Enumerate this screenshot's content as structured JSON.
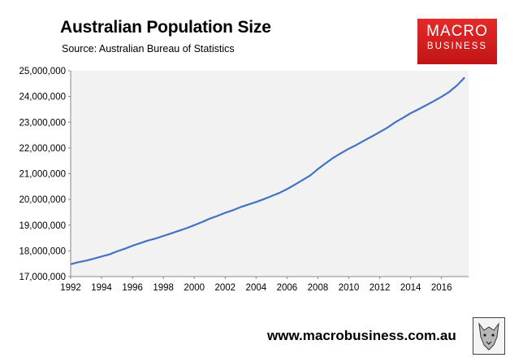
{
  "header": {
    "title": "Australian Population Size",
    "subtitle": "Source: Australian Bureau of Statistics"
  },
  "logo": {
    "line1": "MACRO",
    "line2": "BUSINESS",
    "color": "#d61f1f"
  },
  "footer": {
    "url": "www.macrobusiness.com.au",
    "icon": "wolf-icon"
  },
  "chart_data": {
    "type": "line",
    "title": "Australian Population Size",
    "subtitle": "Source: Australian Bureau of Statistics",
    "xlabel": "",
    "ylabel": "",
    "xlim": [
      1992,
      2017.75
    ],
    "ylim": [
      17000000,
      25000000
    ],
    "y_ticks": [
      "17,000,000",
      "18,000,000",
      "19,000,000",
      "20,000,000",
      "21,000,000",
      "22,000,000",
      "23,000,000",
      "24,000,000",
      "25,000,000"
    ],
    "x_ticks": [
      "1992",
      "1994",
      "1996",
      "1998",
      "2000",
      "2002",
      "2004",
      "2006",
      "2008",
      "2010",
      "2012",
      "2014",
      "2016"
    ],
    "grid": false,
    "line_color": "#4472c4",
    "plot_background": "#f2f2f2",
    "series": [
      {
        "x": [
          1992.0,
          1992.5,
          1993.0,
          1993.5,
          1994.0,
          1994.5,
          1995.0,
          1995.5,
          1996.0,
          1996.5,
          1997.0,
          1997.5,
          1998.0,
          1998.5,
          1999.0,
          1999.5,
          2000.0,
          2000.5,
          2001.0,
          2001.5,
          2002.0,
          2002.5,
          2003.0,
          2003.5,
          2004.0,
          2004.5,
          2005.0,
          2005.5,
          2006.0,
          2006.5,
          2007.0,
          2007.5,
          2008.0,
          2008.5,
          2009.0,
          2009.5,
          2010.0,
          2010.5,
          2011.0,
          2011.5,
          2012.0,
          2012.5,
          2013.0,
          2013.5,
          2014.0,
          2014.5,
          2015.0,
          2015.5,
          2016.0,
          2016.5,
          2017.0,
          2017.5
        ],
        "values": [
          17480000,
          17560000,
          17620000,
          17700000,
          17780000,
          17860000,
          17980000,
          18080000,
          18200000,
          18300000,
          18400000,
          18480000,
          18580000,
          18680000,
          18780000,
          18880000,
          19000000,
          19120000,
          19250000,
          19360000,
          19480000,
          19580000,
          19700000,
          19800000,
          19900000,
          20010000,
          20130000,
          20250000,
          20400000,
          20570000,
          20750000,
          20930000,
          21180000,
          21400000,
          21620000,
          21800000,
          21970000,
          22120000,
          22290000,
          22450000,
          22620000,
          22790000,
          23000000,
          23170000,
          23350000,
          23500000,
          23660000,
          23820000,
          23990000,
          24180000,
          24430000,
          24740000
        ]
      }
    ]
  }
}
